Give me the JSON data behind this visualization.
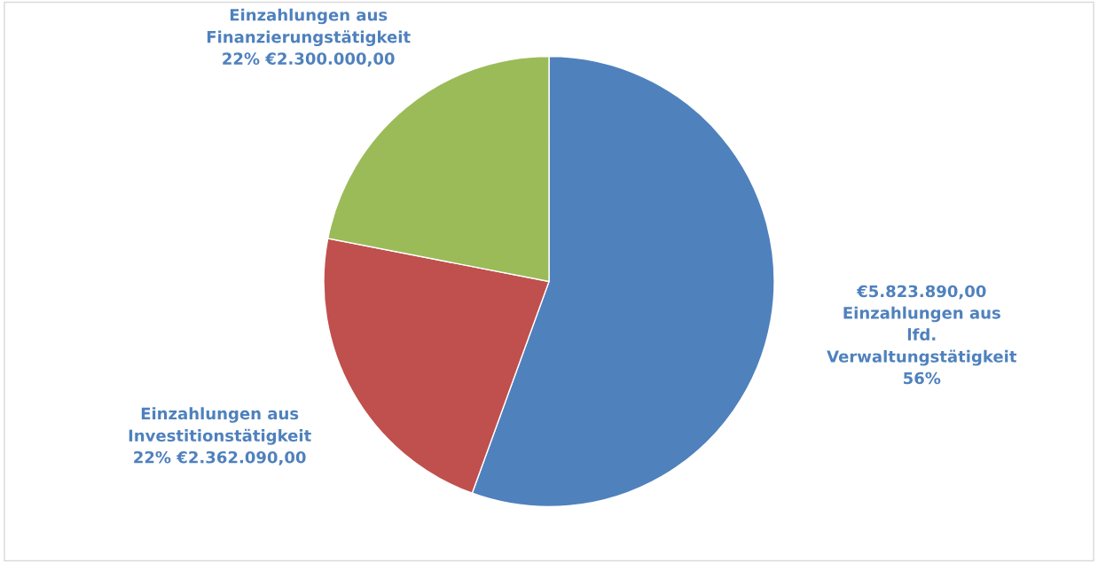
{
  "chart_data": {
    "type": "pie",
    "categories": [
      "Einzahlungen aus\nlfd.\nVerwaltungstätigkeit",
      "Einzahlungen aus\nInvestitionstätigkeit",
      "Einzahlungen aus\nFinanzierungstätigkeit"
    ],
    "values": [
      5823890,
      2362090,
      2300000
    ],
    "colors": [
      "#4f81bd",
      "#c0504d",
      "#9bbb59"
    ],
    "value_labels": [
      "€5.823.890,00\n56%",
      "22% €2.362.090,00",
      "22% €2.300.000,00"
    ],
    "legend": false
  }
}
